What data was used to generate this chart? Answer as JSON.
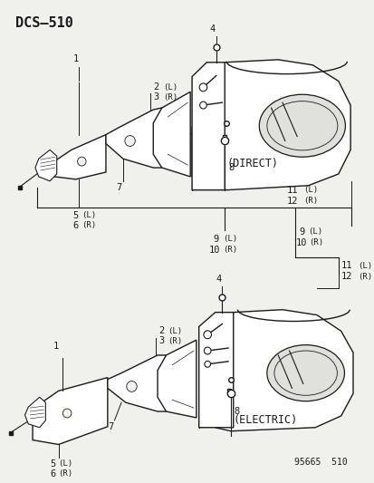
{
  "title": "DCS–510",
  "bg_color": "#f0f0ec",
  "line_color": "#1a1a1a",
  "text_color": "#1a1a1a",
  "footer": "95665  510",
  "diagram1_label": "(DIRECT)",
  "diagram2_label": "(ELECTRIC)"
}
